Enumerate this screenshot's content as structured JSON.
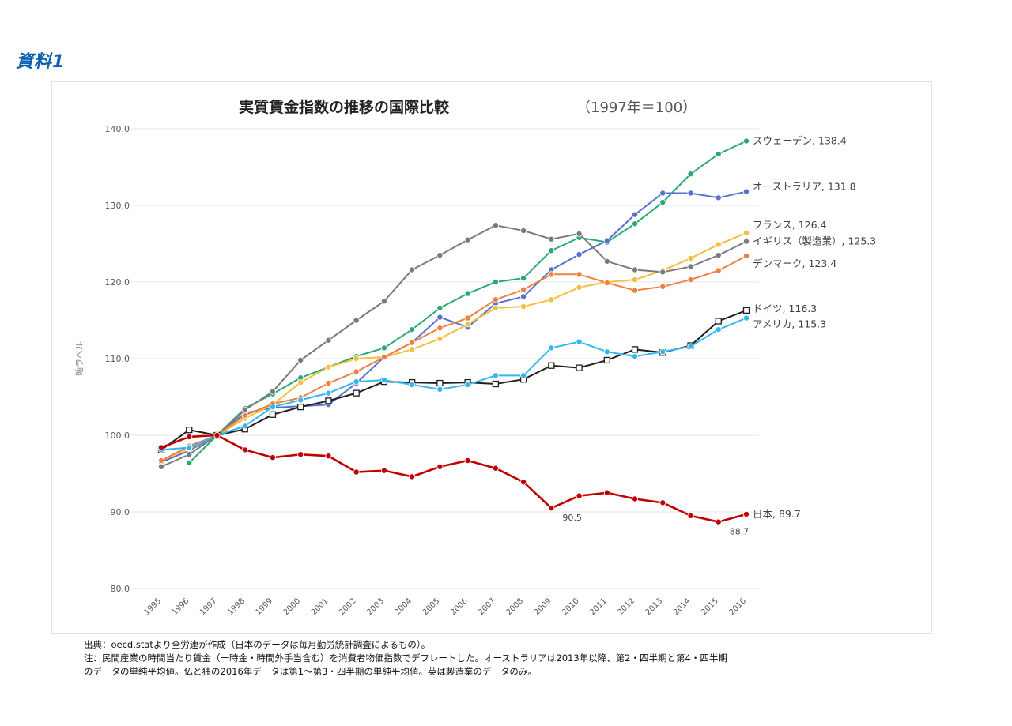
{
  "doc_label": "資料1",
  "chart_data": {
    "type": "line",
    "title": "実質賃金指数の推移の国際比較",
    "title_suffix": "（1997年＝100）",
    "ylabel": "軸ラベル",
    "xlabel": "",
    "ylim": [
      80,
      140
    ],
    "yticks": [
      "80.0",
      "90.0",
      "100.0",
      "110.0",
      "120.0",
      "130.0",
      "140.0"
    ],
    "x": [
      "1995",
      "1996",
      "1997",
      "1998",
      "1999",
      "2000",
      "2001",
      "2002",
      "2003",
      "2004",
      "2005",
      "2006",
      "2007",
      "2008",
      "2009",
      "2010",
      "2011",
      "2012",
      "2013",
      "2014",
      "2015",
      "2016"
    ],
    "grid": true,
    "series": [
      {
        "name": "スウェーデン",
        "end_label": "スウェーデン, 138.4",
        "color": "#2aa876",
        "marker": "circle",
        "values": [
          null,
          96.4,
          100.0,
          103.5,
          105.4,
          107.5,
          108.9,
          110.3,
          111.4,
          113.8,
          116.6,
          118.5,
          120.0,
          120.5,
          124.1,
          125.8,
          125.2,
          127.6,
          130.4,
          134.1,
          136.7,
          138.4
        ]
      },
      {
        "name": "オーストラリア",
        "end_label": "オーストラリア, 131.8",
        "color": "#5572d0",
        "marker": "circle",
        "values": [
          96.5,
          98.0,
          100.0,
          102.9,
          103.6,
          103.8,
          104.0,
          106.8,
          110.2,
          112.1,
          115.4,
          114.1,
          117.2,
          118.1,
          121.6,
          123.6,
          125.4,
          128.8,
          131.6,
          131.6,
          131.0,
          131.8
        ]
      },
      {
        "name": "フランス",
        "end_label": "フランス, 126.4",
        "color": "#f2c040",
        "marker": "circle",
        "values": [
          96.7,
          98.3,
          100.0,
          102.2,
          104.0,
          106.9,
          108.9,
          110.0,
          110.2,
          111.2,
          112.6,
          114.5,
          116.6,
          116.8,
          117.7,
          119.3,
          120.0,
          120.3,
          121.5,
          123.1,
          124.9,
          126.4
        ]
      },
      {
        "name": "イギリス（製造業）",
        "end_label": "イギリス（製造業）, 125.3",
        "color": "#7a7a7a",
        "marker": "circle",
        "values": [
          95.9,
          97.5,
          100.0,
          103.3,
          105.7,
          109.8,
          112.4,
          115.0,
          117.5,
          121.6,
          123.5,
          125.5,
          127.4,
          126.7,
          125.6,
          126.3,
          122.7,
          121.6,
          121.3,
          122.0,
          123.5,
          125.3
        ]
      },
      {
        "name": "デンマーク",
        "end_label": "デンマーク, 123.4",
        "color": "#ee8040",
        "marker": "circle",
        "values": [
          96.7,
          98.6,
          100.0,
          102.6,
          104.1,
          104.9,
          106.8,
          108.3,
          110.2,
          112.1,
          114.0,
          115.3,
          117.7,
          119.0,
          121.0,
          121.0,
          119.9,
          118.9,
          119.4,
          120.3,
          121.5,
          123.4
        ]
      },
      {
        "name": "ドイツ",
        "end_label": "ドイツ, 116.3",
        "color": "#202020",
        "marker": "square",
        "values": [
          98.1,
          100.7,
          100.0,
          100.8,
          102.7,
          103.7,
          104.5,
          105.5,
          107.0,
          106.9,
          106.8,
          106.9,
          106.7,
          107.3,
          109.1,
          108.8,
          109.8,
          111.2,
          110.8,
          111.7,
          114.9,
          116.3
        ]
      },
      {
        "name": "アメリカ",
        "end_label": "アメリカ, 115.3",
        "color": "#33b8ee",
        "marker": "circle",
        "values": [
          98.1,
          98.4,
          100.0,
          101.2,
          103.7,
          104.6,
          105.5,
          107.0,
          107.2,
          106.6,
          106.0,
          106.6,
          107.8,
          107.8,
          111.4,
          112.2,
          110.9,
          110.3,
          110.9,
          111.6,
          113.8,
          115.3
        ]
      },
      {
        "name": "日本",
        "end_label": "日本, 89.7",
        "color": "#c00000",
        "marker": "circle",
        "values": [
          98.4,
          99.8,
          100.0,
          98.1,
          97.1,
          97.5,
          97.3,
          95.2,
          95.4,
          94.6,
          95.9,
          96.7,
          95.7,
          93.9,
          90.5,
          92.1,
          92.5,
          91.7,
          91.2,
          89.5,
          88.7,
          89.7
        ]
      }
    ],
    "annotations": [
      {
        "text": "90.5",
        "x": "2009",
        "y": 90.5
      },
      {
        "text": "88.7",
        "x": "2015",
        "y": 88.7
      }
    ]
  },
  "notes": [
    "出典：oecd.statより全労連が作成（日本のデータは毎月勤労統計調査によるもの）。",
    "注：民間産業の時間当たり賃金（一時金・時間外手当含む）を消費者物価指数でデフレートした。オーストラリアは2013年以降、第2・四半期と第4・四半期",
    "のデータの単純平均値。仏と独の2016年データは第1〜第3・四半期の単純平均値。英は製造業のデータのみ。"
  ]
}
